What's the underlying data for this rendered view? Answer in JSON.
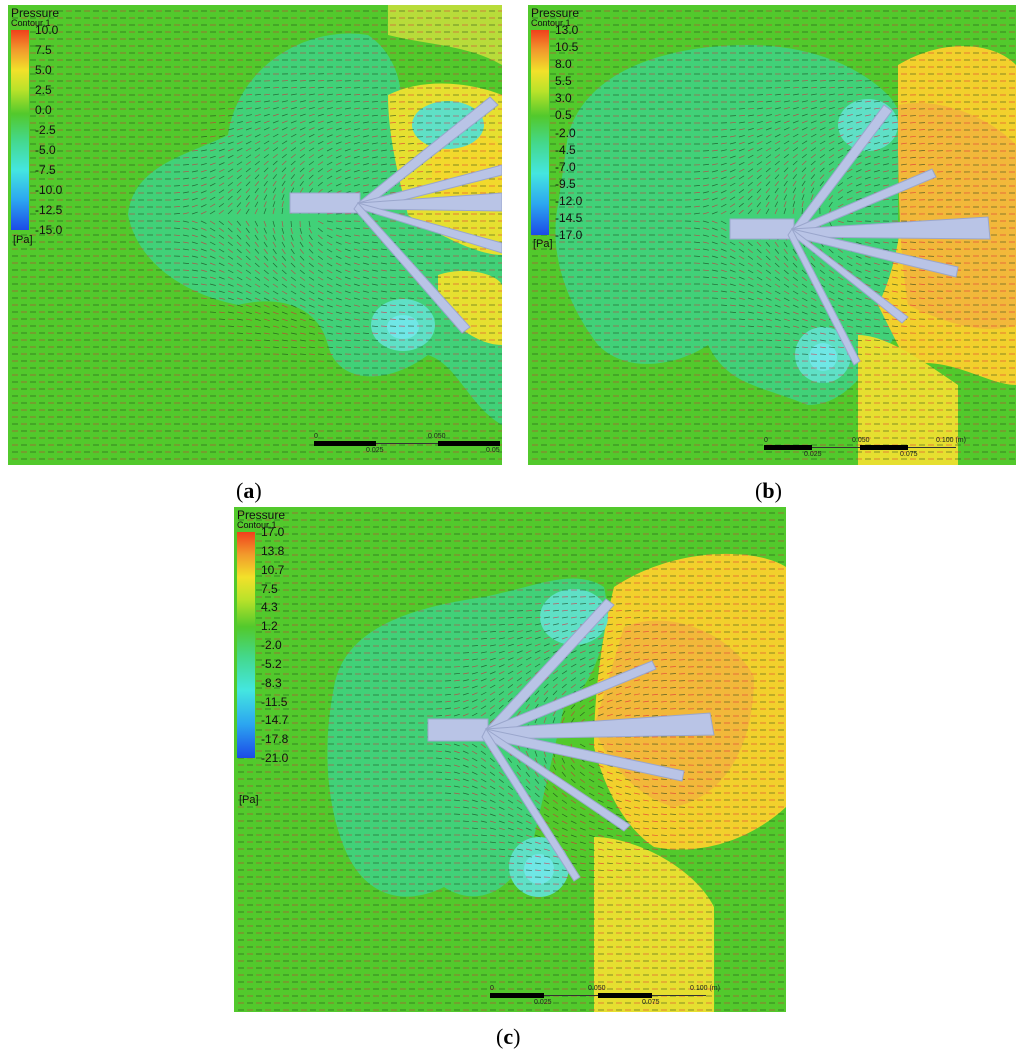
{
  "panels": [
    {
      "id": "a",
      "caption_letter": "a",
      "legend": {
        "title": "Pressure",
        "subtitle": "Contour 1",
        "ticks": [
          "10.0",
          "7.5",
          "5.0",
          "2.5",
          "0.0",
          "-2.5",
          "-5.0",
          "-7.5",
          "-10.0",
          "-12.5",
          "-15.0"
        ],
        "unit": "[Pa]",
        "range": [
          -15.0,
          10.0
        ]
      },
      "scale_labels": [
        "0",
        "0.025",
        "0.050",
        "0.05"
      ]
    },
    {
      "id": "b",
      "caption_letter": "b",
      "legend": {
        "title": "Pressure",
        "subtitle": "Contour 1",
        "ticks": [
          "13.0",
          "10.5",
          "8.0",
          "5.5",
          "3.0",
          "0.5",
          "-2.0",
          "-4.5",
          "-7.0",
          "-9.5",
          "-12.0",
          "-14.5",
          "-17.0"
        ],
        "unit": "[Pa]",
        "range": [
          -17.0,
          13.0
        ]
      },
      "scale_labels": [
        "0",
        "0.025",
        "0.050",
        "0.075",
        "0.100 (m)"
      ]
    },
    {
      "id": "c",
      "caption_letter": "c",
      "legend": {
        "title": "Pressure",
        "subtitle": "Contour 1",
        "ticks": [
          "17.0",
          "13.8",
          "10.7",
          "7.5",
          "4.3",
          "1.2",
          "-2.0",
          "-5.2",
          "-8.3",
          "-11.5",
          "-14.7",
          "-17.8",
          "-21.0"
        ],
        "unit": "[Pa]",
        "range": [
          -21.0,
          17.0
        ]
      },
      "scale_labels": [
        "0",
        "0.025",
        "0.050",
        "0.075",
        "0.100 (m)"
      ]
    }
  ],
  "colors": {
    "field_green": "#4fc92c",
    "low_cyan": "#3fdca0",
    "high_yellow": "#f2e12a",
    "high_orange": "#f2a43a",
    "blade": "#b9c4e6",
    "vector_red": "#e0203a",
    "vector_dark": "#1a3a1a"
  }
}
